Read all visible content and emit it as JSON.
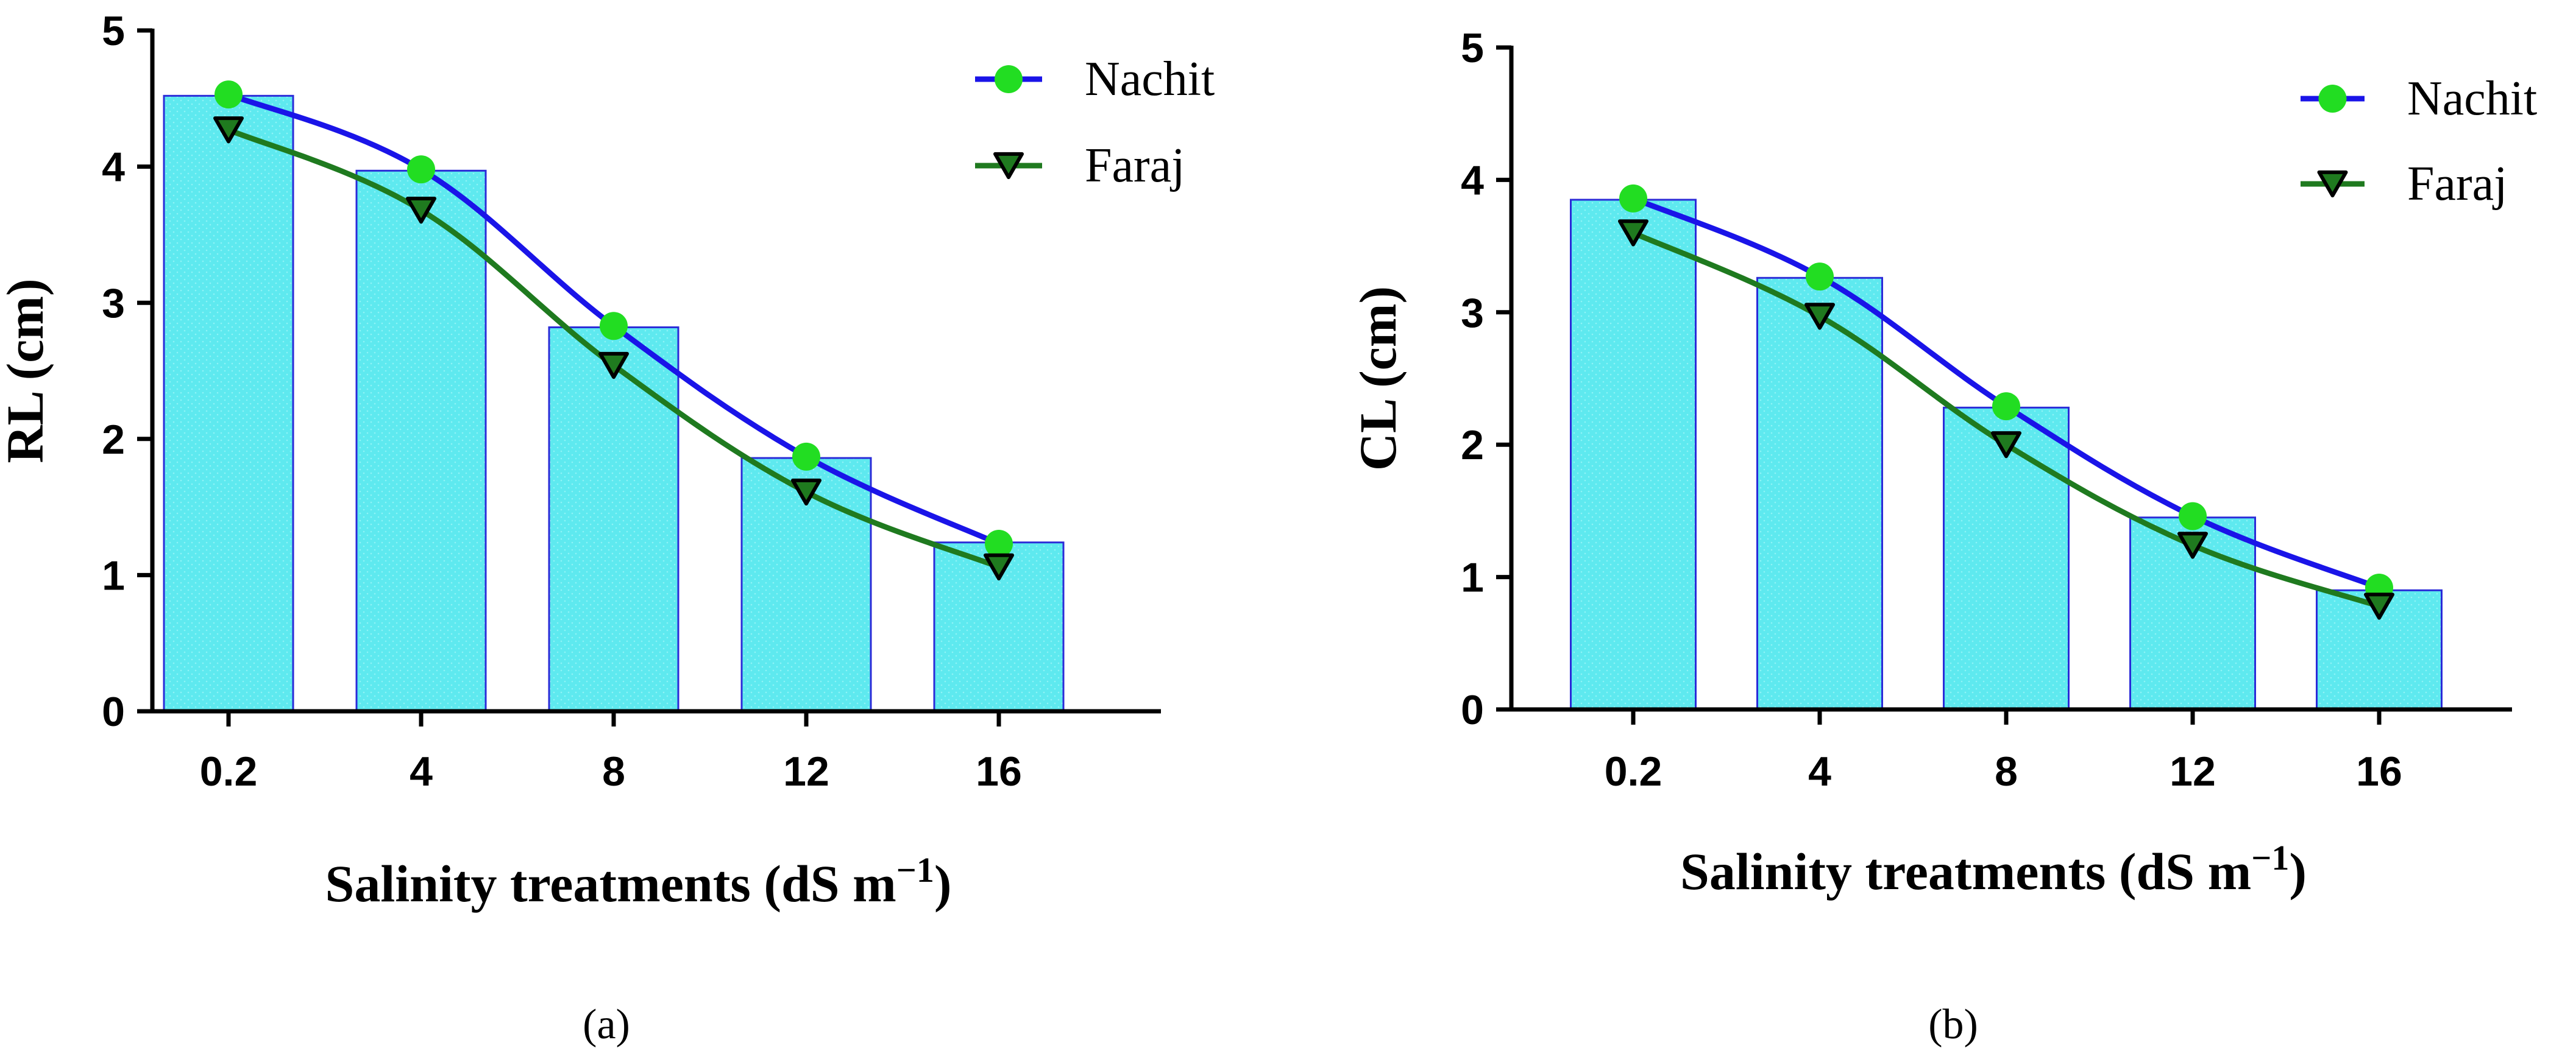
{
  "chart_data": [
    {
      "type": "bar",
      "panel_label": "(a)",
      "categories": [
        "0.2",
        "4",
        "8",
        "12",
        "16"
      ],
      "bars": [
        4.52,
        3.97,
        2.82,
        1.86,
        1.24
      ],
      "series": [
        {
          "name": "Nachit",
          "values": [
            4.53,
            3.98,
            2.83,
            1.87,
            1.23
          ],
          "color": "#1a14e8",
          "marker": "circle",
          "marker_color": "#22dd22"
        },
        {
          "name": "Faraj",
          "values": [
            4.27,
            3.68,
            2.54,
            1.61,
            1.06
          ],
          "color": "#1f7a1f",
          "marker": "triangle-down",
          "marker_color": "#1f7a1f"
        }
      ],
      "xlabel": "Salinity treatments (dS m",
      "xlabel_sup": "−1",
      "xlabel_close": ")",
      "ylabel": "RL (cm)",
      "ylim": [
        0,
        5
      ],
      "yticks": [
        "0",
        "1",
        "2",
        "3",
        "4",
        "5"
      ],
      "legend": "top-right",
      "grid": false
    },
    {
      "type": "bar",
      "panel_label": "(b)",
      "categories": [
        "0.2",
        "4",
        "8",
        "12",
        "16"
      ],
      "bars": [
        3.85,
        3.26,
        2.28,
        1.45,
        0.9
      ],
      "series": [
        {
          "name": "Nachit",
          "values": [
            3.86,
            3.27,
            2.29,
            1.46,
            0.92
          ],
          "color": "#1a14e8",
          "marker": "circle",
          "marker_color": "#22dd22"
        },
        {
          "name": "Faraj",
          "values": [
            3.6,
            2.97,
            2.0,
            1.24,
            0.78
          ],
          "color": "#1f7a1f",
          "marker": "triangle-down",
          "marker_color": "#1f7a1f"
        }
      ],
      "xlabel": "Salinity treatments (dS m",
      "xlabel_sup": "−1",
      "xlabel_close": ")",
      "ylabel": "CL (cm)",
      "ylim": [
        0,
        5
      ],
      "yticks": [
        "0",
        "1",
        "2",
        "3",
        "4",
        "5"
      ],
      "legend": "top-right",
      "grid": false
    }
  ],
  "colors": {
    "bar_fill": "#5ee9ef",
    "bar_stroke": "#2b2bd8",
    "axis": "#000000"
  }
}
